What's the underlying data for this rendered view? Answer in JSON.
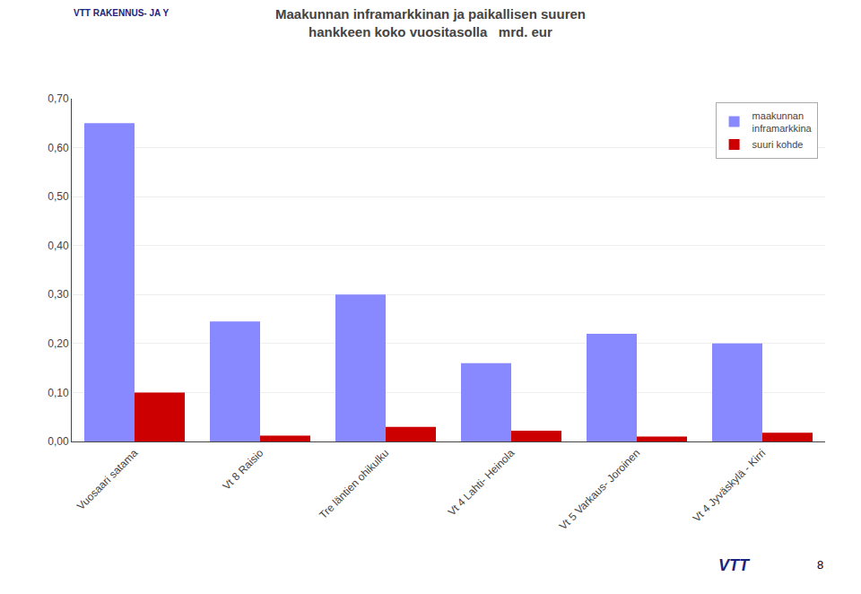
{
  "chart_data": {
    "type": "bar",
    "title": "Maakunnan inframarkkinan ja paikallisen suuren\nhankkeen koko vuositasolla   mrd. eur",
    "categories": [
      "Vuosaari satama",
      "Vt 8 Raisio",
      "Tre läntien ohikulku",
      "Vt 4 Lahti- Heinola",
      "Vt 5 Varkaus- Joroinen",
      "Vt 4 Jyväskylä - Kirri"
    ],
    "series": [
      {
        "name": "maakunnan\ninframarkkina",
        "color": "#8888FF",
        "values": [
          0.65,
          0.245,
          0.3,
          0.16,
          0.22,
          0.2
        ]
      },
      {
        "name": "suuri kohde",
        "color": "#CC0000",
        "values": [
          0.1,
          0.012,
          0.03,
          0.022,
          0.01,
          0.018
        ]
      }
    ],
    "ylim": [
      0.0,
      0.7
    ],
    "yticks": [
      {
        "value": 0.0,
        "label": "0,00"
      },
      {
        "value": 0.1,
        "label": "0,10"
      },
      {
        "value": 0.2,
        "label": "0,20"
      },
      {
        "value": 0.3,
        "label": "0,30"
      },
      {
        "value": 0.4,
        "label": "0,40"
      },
      {
        "value": 0.5,
        "label": "0,50"
      },
      {
        "value": 0.6,
        "label": "0,60"
      },
      {
        "value": 0.7,
        "label": "0,70"
      }
    ],
    "grid": true,
    "legend": "upper right",
    "annotations": [
      "VTT RAKENNUS- JA Y",
      "VTT",
      "8"
    ]
  }
}
